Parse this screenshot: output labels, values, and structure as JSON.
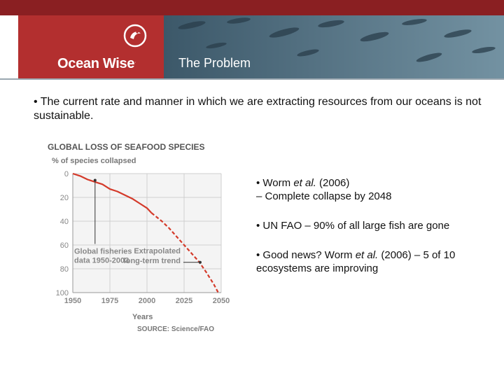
{
  "header": {
    "brand_name": "Ocean Wise",
    "trademark": ".",
    "slide_title": "The Problem",
    "colors": {
      "topbar": "#8a1f22",
      "brand": "#b32f2f",
      "header_art": "#526f80"
    }
  },
  "bullets": {
    "main": "• The current rate and manner in which we are extracting resources from our oceans is not sustainable.",
    "b1_pre": "• Worm ",
    "b1_em": "et al.",
    "b1_post": " (2006)",
    "b1_line2": "– Complete collapse by 2048",
    "b2": "• UN FAO – 90% of all large fish are gone",
    "b3_pre": "• Good news? Worm ",
    "b3_em": "et al.",
    "b3_post": " (2006) – 5 of 10 ecosystems are improving"
  },
  "chart_data": {
    "type": "line",
    "title": "GLOBAL LOSS OF SEAFOOD SPECIES",
    "ylabel": "% of species collapsed",
    "xlabel": "Years",
    "source": "SOURCE: Science/FAO",
    "xlim": [
      1950,
      2050
    ],
    "ylim": [
      0,
      100
    ],
    "y_inverted": true,
    "x_ticks": [
      "1950",
      "1975",
      "2000",
      "2025",
      "2050"
    ],
    "y_ticks": [
      "0",
      "20",
      "40",
      "60",
      "80",
      "100"
    ],
    "grid": true,
    "line_color": "#d43a2a",
    "series": [
      {
        "name": "Global fisheries data 1950-2003",
        "style": "solid",
        "x": [
          1950,
          1955,
          1960,
          1965,
          1970,
          1975,
          1980,
          1985,
          1990,
          1995,
          2000,
          2003
        ],
        "y": [
          0,
          2,
          5,
          7,
          9,
          13,
          15,
          18,
          21,
          25,
          29,
          33
        ]
      },
      {
        "name": "Extrapolated long-term trend",
        "style": "dashed",
        "x": [
          2003,
          2010,
          2015,
          2020,
          2025,
          2030,
          2035,
          2040,
          2045,
          2048
        ],
        "y": [
          33,
          40,
          46,
          53,
          60,
          67,
          74,
          83,
          93,
          100
        ]
      }
    ],
    "annotations": [
      {
        "line1": "Global fisheries",
        "line2": "data 1950-2003",
        "x": 1965,
        "y": 5
      },
      {
        "line1": "Extrapolated",
        "line2": "long-term trend",
        "x": 2033,
        "y": 74
      }
    ]
  }
}
